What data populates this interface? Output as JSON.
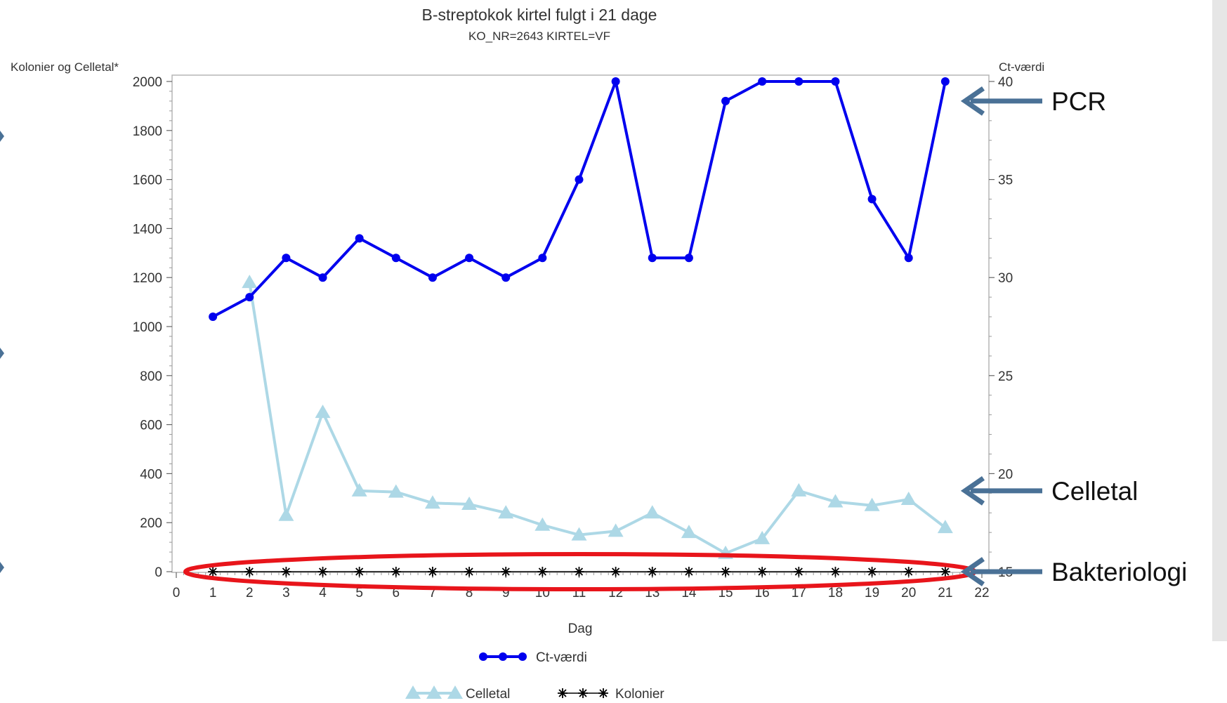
{
  "chart_data": {
    "type": "line",
    "title": "B-streptokok kirtel fulgt i 21 dage",
    "subtitle": "KO_NR=2643 KIRTEL=VF",
    "xlabel": "Dag",
    "ylabel_left": "Kolonier og Celletal*",
    "ylabel_right": "Ct-værdi",
    "xlim": [
      0,
      22
    ],
    "ylim_left": [
      0,
      2000
    ],
    "ylim_right": [
      15,
      40
    ],
    "x_ticks": [
      0,
      1,
      2,
      3,
      4,
      5,
      6,
      7,
      8,
      9,
      10,
      11,
      12,
      13,
      14,
      15,
      16,
      17,
      18,
      19,
      20,
      21,
      22
    ],
    "y_left_ticks": [
      0,
      200,
      400,
      600,
      800,
      1000,
      1200,
      1400,
      1600,
      1800,
      2000
    ],
    "y_right_ticks": [
      15,
      20,
      25,
      30,
      35,
      40
    ],
    "grid": false,
    "legend_position": "bottom",
    "series": [
      {
        "name": "Ct-værdi",
        "axis": "right",
        "color": "#0000ee",
        "marker": "circle",
        "x": [
          1,
          2,
          3,
          4,
          5,
          6,
          7,
          8,
          9,
          10,
          11,
          12,
          13,
          14,
          15,
          16,
          17,
          18,
          19,
          20,
          21
        ],
        "values": [
          28,
          29,
          31,
          30,
          32,
          31,
          30,
          31,
          30,
          31,
          35,
          40,
          31,
          31,
          39,
          40,
          40,
          40,
          34,
          31,
          40
        ]
      },
      {
        "name": "Celletal",
        "axis": "left",
        "color": "#add8e6",
        "marker": "triangle",
        "x": [
          1,
          2,
          3,
          4,
          5,
          6,
          7,
          8,
          9,
          10,
          11,
          12,
          13,
          14,
          15,
          16,
          17,
          18,
          19,
          20,
          21
        ],
        "values": [
          null,
          1180,
          230,
          650,
          330,
          325,
          280,
          275,
          240,
          190,
          150,
          165,
          240,
          160,
          75,
          135,
          330,
          285,
          270,
          295,
          180
        ]
      },
      {
        "name": "Kolonier",
        "axis": "left",
        "color": "#000000",
        "marker": "star",
        "x": [
          1,
          2,
          3,
          4,
          5,
          6,
          7,
          8,
          9,
          10,
          11,
          12,
          13,
          14,
          15,
          16,
          17,
          18,
          19,
          20,
          21
        ],
        "values": [
          0,
          0,
          0,
          0,
          0,
          0,
          0,
          0,
          0,
          0,
          0,
          0,
          0,
          0,
          0,
          0,
          0,
          0,
          0,
          0,
          0
        ]
      }
    ],
    "annotations": [
      {
        "label": "PCR",
        "x": 21,
        "value": 39,
        "axis": "right"
      },
      {
        "label": "Celletal",
        "x": 21,
        "value": 330,
        "axis": "left"
      },
      {
        "label": "Bakteriologi",
        "x": 21,
        "value": 0,
        "axis": "left"
      }
    ],
    "highlight_ellipse_color": "#e8151b",
    "arrow_color": "#4a7196"
  }
}
